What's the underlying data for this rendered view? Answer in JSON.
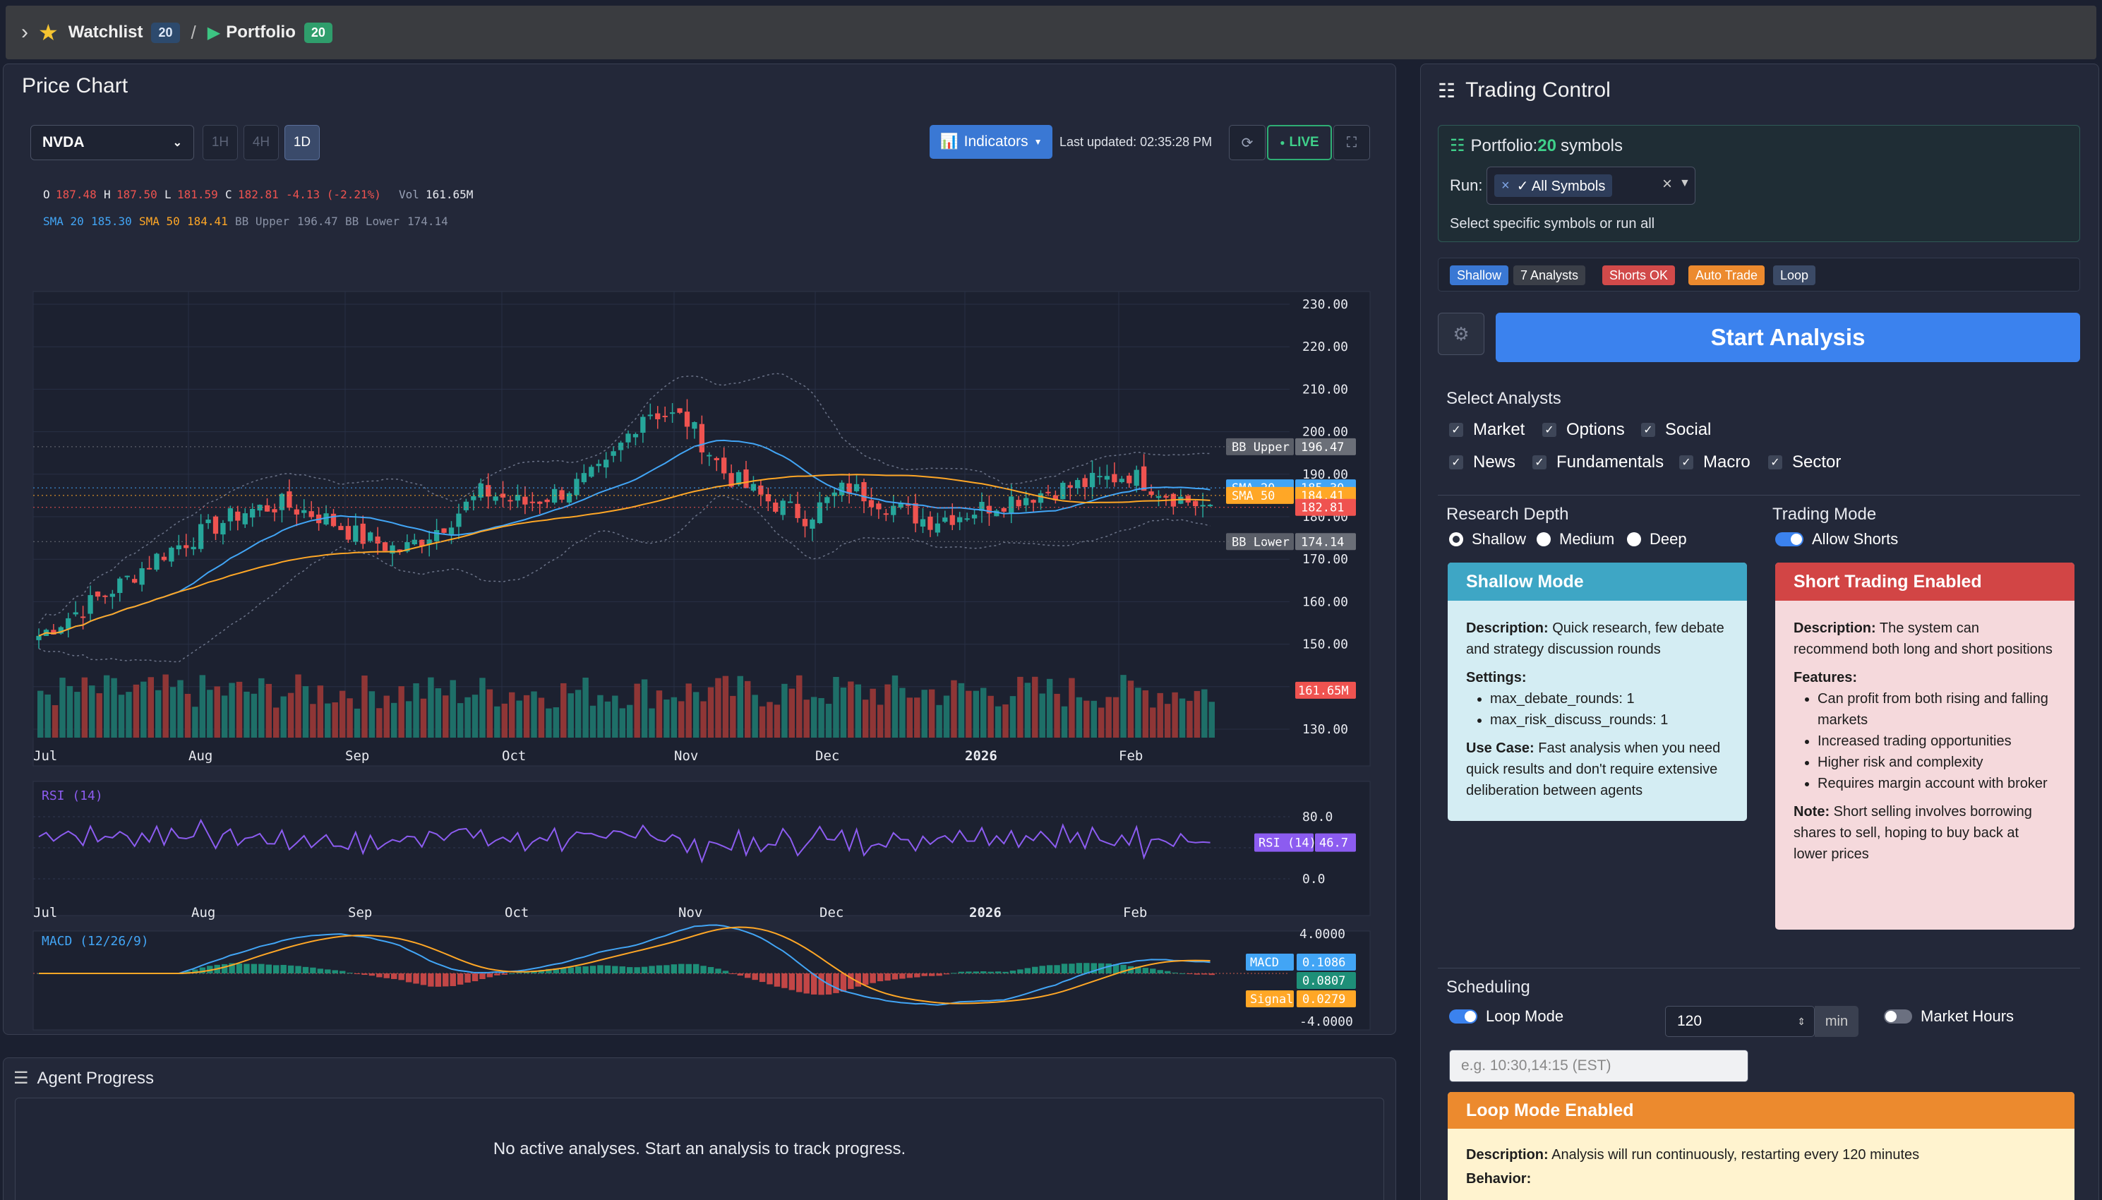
{
  "topbar": {
    "watchlist_label": "Watchlist",
    "watchlist_count": "20",
    "separator": "/",
    "portfolio_label": "Portfolio",
    "portfolio_count": "20"
  },
  "chart": {
    "title": "Price Chart",
    "symbol": "NVDA",
    "timeframes": [
      "1H",
      "4H",
      "1D"
    ],
    "active_timeframe": "1D",
    "indicators_label": "Indicators",
    "last_updated": "Last updated: 02:35:28 PM",
    "live_label": "LIVE",
    "ohlc": {
      "o_label": "O",
      "o": "187.48",
      "h_label": "H",
      "h": "187.50",
      "l_label": "L",
      "l": "181.59",
      "c_label": "C",
      "c": "182.81",
      "change": "-4.13 (-2.21%)",
      "vol_label": "Vol",
      "vol": "161.65M"
    },
    "overlay": {
      "sma20_label": "SMA 20",
      "sma20": "185.30",
      "sma50_label": "SMA 50",
      "sma50": "184.41",
      "bbu_label": "BB Upper",
      "bbu": "196.47",
      "bbl_label": "BB Lower",
      "bbl": "174.14"
    },
    "price_axis": [
      "230.00",
      "220.00",
      "210.00",
      "200.00",
      "190.00",
      "180.00",
      "170.00",
      "160.00",
      "150.00",
      "140.00",
      "130.00"
    ],
    "x_labels": [
      "Jul",
      "Aug",
      "Sep",
      "Oct",
      "Nov",
      "Dec",
      "2026",
      "Feb"
    ],
    "tags": {
      "bbu_name": "BB Upper",
      "bbu_val": "196.47",
      "sma20_name": "SMA 20",
      "sma20_val": "185.30",
      "sma50_name": "SMA 50",
      "sma50_val": "184.41",
      "last_price": "182.81",
      "bbl_name": "BB Lower",
      "bbl_val": "174.14",
      "vol_val": "161.65M"
    },
    "rsi": {
      "title": "RSI (14)",
      "axis": [
        "80.0",
        "40.0",
        "0.0"
      ],
      "tag_name": "RSI (14)",
      "tag_val": "46.7"
    },
    "macd": {
      "title": "MACD (12/26/9)",
      "axis_top": "4.0000",
      "axis_bottom": "-4.0000",
      "macd_name": "MACD",
      "macd_val": "0.1086",
      "hist_val": "0.0807",
      "signal_name": "Signal",
      "signal_val": "0.0279"
    }
  },
  "chart_data": {
    "type": "candlestick",
    "symbol": "NVDA",
    "x_range": [
      "Jul",
      "Feb"
    ],
    "ylim": [
      130,
      230
    ],
    "last": {
      "open": 187.48,
      "high": 187.5,
      "low": 181.59,
      "close": 182.81,
      "volume": "161.65M"
    },
    "indicators": {
      "sma20": 185.3,
      "sma50": 184.41,
      "bb_upper": 196.47,
      "bb_lower": 174.14,
      "rsi14": 46.7,
      "macd": 0.1086,
      "macd_signal": 0.0279,
      "macd_hist": 0.0807
    },
    "approx_close_path": [
      152,
      158,
      164,
      171,
      176,
      181,
      183,
      180,
      175,
      172,
      178,
      186,
      183,
      186,
      191,
      205,
      203,
      190,
      184,
      180,
      187,
      183,
      179,
      181,
      184,
      186,
      188,
      190,
      185,
      182
    ],
    "grid": true
  },
  "agent": {
    "title": "Agent Progress",
    "empty_text": "No active analyses. Start an analysis to track progress."
  },
  "trading": {
    "title": "Trading Control",
    "portfolio_prefix": "Portfolio:",
    "portfolio_count": "20",
    "portfolio_suffix": "symbols",
    "run_label": "Run:",
    "run_tag": "✓ All Symbols",
    "run_hint": "Select specific symbols or run all",
    "chips": [
      "Shallow",
      "7 Analysts",
      "Shorts OK",
      "Auto Trade",
      "Loop"
    ],
    "start_label": "Start Analysis",
    "analysts_title": "Select Analysts",
    "analysts": [
      "Market",
      "Options",
      "Social",
      "News",
      "Fundamentals",
      "Macro",
      "Sector"
    ],
    "depth_title": "Research Depth",
    "depth_options": [
      "Shallow",
      "Medium",
      "Deep"
    ],
    "depth_selected": "Shallow",
    "mode_title": "Trading Mode",
    "allow_shorts": "Allow Shorts",
    "shallow_card": {
      "title": "Shallow Mode",
      "desc_label": "Description:",
      "desc": " Quick research, few debate and strategy discussion rounds",
      "settings_label": "Settings:",
      "settings": [
        "max_debate_rounds: 1",
        "max_risk_discuss_rounds: 1"
      ],
      "use_label": "Use Case:",
      "use": " Fast analysis when you need quick results and don't require extensive deliberation between agents"
    },
    "short_card": {
      "title": "Short Trading Enabled",
      "desc_label": "Description:",
      "desc": " The system can recommend both long and short positions",
      "features_label": "Features:",
      "features": [
        "Can profit from both rising and falling markets",
        "Increased trading opportunities",
        "Higher risk and complexity",
        "Requires margin account with broker"
      ],
      "note_label": "Note:",
      "note": " Short selling involves borrowing shares to sell, hoping to buy back at lower prices"
    },
    "scheduling_title": "Scheduling",
    "loop_mode": "Loop Mode",
    "interval_value": "120",
    "interval_unit": "min",
    "market_hours": "Market Hours",
    "times_placeholder": "e.g. 10:30,14:15 (EST)",
    "loop_card": {
      "title": "Loop Mode Enabled",
      "desc_label": "Description:",
      "desc": " Analysis will run continuously, restarting every 120 minutes",
      "behavior_label": "Behavior:"
    }
  },
  "colors": {
    "up": "#26a69a",
    "down": "#ef5350",
    "sma20": "#42a5f5",
    "sma50": "#ffa726",
    "rsi": "#8c5cf0",
    "accent": "#3b82ee",
    "live": "#3fd08a"
  }
}
